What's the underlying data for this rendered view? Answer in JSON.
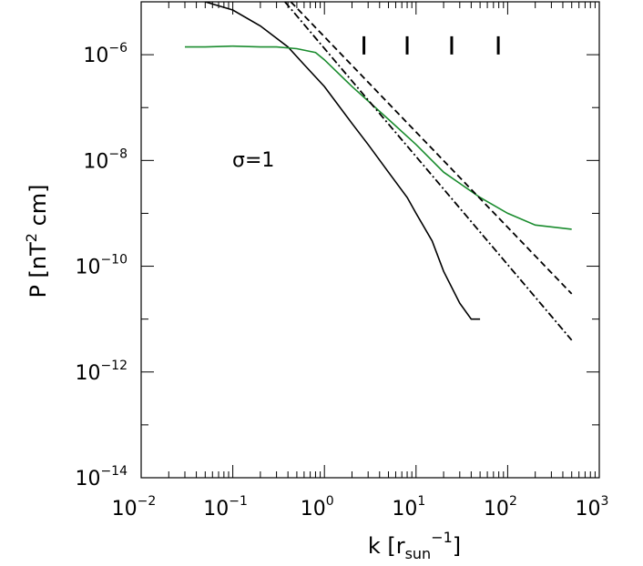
{
  "chart_data": {
    "type": "line",
    "xscale": "log",
    "yscale": "log",
    "xlim": [
      0.01,
      1000
    ],
    "ylim": [
      1e-14,
      1e-05
    ],
    "xlabel": {
      "base": "k  [r",
      "sub": "sun",
      "sup": "−1",
      "close": "]"
    },
    "ylabel": {
      "base": "P  [nT",
      "sup": "2",
      "tail": " cm]"
    },
    "x_ticks": [
      {
        "value": 0.01,
        "base": "10",
        "exp": "−2"
      },
      {
        "value": 0.1,
        "base": "10",
        "exp": "−1"
      },
      {
        "value": 1,
        "base": "10",
        "exp": "0"
      },
      {
        "value": 10,
        "base": "10",
        "exp": "1"
      },
      {
        "value": 100,
        "base": "10",
        "exp": "2"
      },
      {
        "value": 1000,
        "base": "10",
        "exp": "3"
      }
    ],
    "y_ticks": [
      {
        "value": 1e-14,
        "base": "10",
        "exp": "−14"
      },
      {
        "value": 1e-12,
        "base": "10",
        "exp": "−12"
      },
      {
        "value": 1e-10,
        "base": "10",
        "exp": "−10"
      },
      {
        "value": 1e-08,
        "base": "10",
        "exp": "−8"
      },
      {
        "value": 1e-06,
        "base": "10",
        "exp": "−6"
      }
    ],
    "annotation": "σ=1",
    "series": [
      {
        "color": "#000000",
        "style": "solid",
        "x": [
          0.05,
          0.1,
          0.2,
          0.4,
          0.6,
          1.0,
          2.0,
          3.0,
          5.0,
          8.0,
          10,
          15,
          20,
          30,
          40,
          50
        ],
        "y": [
          1e-05,
          7e-06,
          3.5e-06,
          1.4e-06,
          6.5e-07,
          2.5e-07,
          5e-08,
          2e-08,
          6e-09,
          2e-09,
          1e-09,
          3e-10,
          8e-11,
          2e-11,
          1e-11,
          1e-11
        ]
      },
      {
        "color": "#1a8c2e",
        "style": "solid",
        "x": [
          0.03,
          0.05,
          0.1,
          0.2,
          0.3,
          0.5,
          0.8,
          1.0,
          2.0,
          5.0,
          10,
          20,
          50,
          100,
          200,
          500
        ],
        "y": [
          1.4e-06,
          1.4e-06,
          1.45e-06,
          1.4e-06,
          1.4e-06,
          1.3e-06,
          1.1e-06,
          8e-07,
          2.5e-07,
          6e-08,
          2e-08,
          6e-09,
          2e-09,
          1e-09,
          6e-10,
          5e-10
        ]
      },
      {
        "color": "#000000",
        "style": "dashed",
        "x": [
          0.43,
          500
        ],
        "y": [
          1e-05,
          3e-11
        ]
      },
      {
        "color": "#000000",
        "style": "dashdot",
        "x": [
          0.37,
          500
        ],
        "y": [
          1e-05,
          4e-12
        ]
      }
    ],
    "markers": {
      "x": [
        2.7,
        8,
        24.5,
        79
      ],
      "y": 1.5e-06
    }
  }
}
